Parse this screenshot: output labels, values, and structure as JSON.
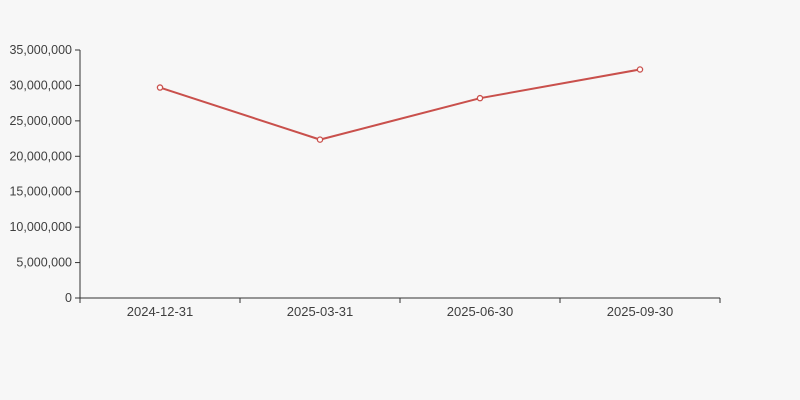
{
  "chart_data": {
    "type": "line",
    "title": "",
    "xlabel": "",
    "ylabel": "",
    "categories": [
      "2024-12-31",
      "2025-03-31",
      "2025-06-30",
      "2025-09-30"
    ],
    "series": [
      {
        "name": "value",
        "values": [
          29700000,
          22350000,
          28200000,
          32250000
        ]
      }
    ],
    "ylim": [
      0,
      35000000
    ],
    "y_tick_step": 5000000,
    "y_tick_labels": [
      "0",
      "5,000,000",
      "10,000,000",
      "15,000,000",
      "20,000,000",
      "25,000,000",
      "30,000,000",
      "35,000,000"
    ],
    "grid": false,
    "legend": "none",
    "marker": "open-circle",
    "colors": {
      "line": "#c9504c",
      "marker_fill": "#ffffff",
      "axis": "#333333",
      "tick_text": "#3f3f3f",
      "background": "#f7f7f7"
    }
  }
}
